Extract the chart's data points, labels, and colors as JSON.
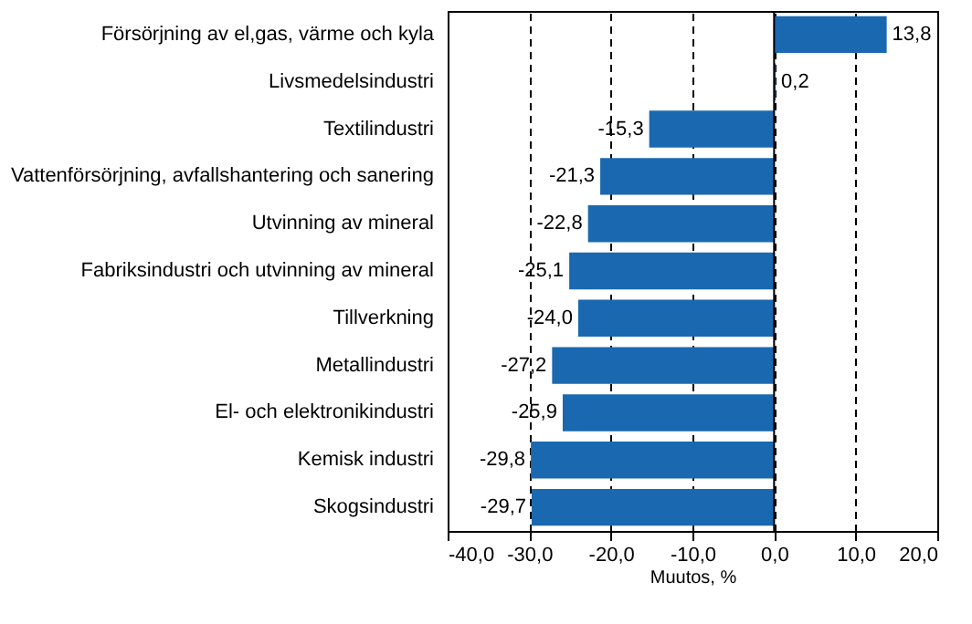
{
  "chart_data": {
    "type": "bar",
    "orientation": "horizontal",
    "xlabel": "Muutos, %",
    "categories": [
      "Försörjning av el,gas, värme och kyla",
      "Livsmedelsindustri",
      "Textilindustri",
      "Vattenförsörjning, avfallshantering och sanering",
      "Utvinning av mineral",
      "Fabriksindustri och utvinning av mineral",
      "Tillverkning",
      "Metallindustri",
      "El- och elektronikindustri",
      "Kemisk industri",
      "Skogsindustri"
    ],
    "values": [
      13.8,
      0.2,
      -15.3,
      -21.3,
      -22.8,
      -25.1,
      -24.0,
      -27.2,
      -25.9,
      -29.8,
      -29.7
    ],
    "value_labels": [
      "13,8",
      "0,2",
      "-15,3",
      "-21,3",
      "-22,8",
      "-25,1",
      "-24,0",
      "-27,2",
      "-25,9",
      "-29,8",
      "-29,7"
    ],
    "color": "#1a69b0",
    "xlim": [
      -40,
      20
    ],
    "xticks": [
      {
        "value": -40,
        "label": "-40,0"
      },
      {
        "value": -30,
        "label": "-30,0"
      },
      {
        "value": -20,
        "label": "-20,0"
      },
      {
        "value": -10,
        "label": "-10,0"
      },
      {
        "value": 0,
        "label": "0,0"
      },
      {
        "value": 10,
        "label": "10,0"
      },
      {
        "value": 20,
        "label": "20,0"
      }
    ],
    "grid": "x",
    "line_style": "dashed",
    "ref_lines": [
      {
        "axis": "x",
        "value": 0,
        "label": null
      }
    ]
  }
}
